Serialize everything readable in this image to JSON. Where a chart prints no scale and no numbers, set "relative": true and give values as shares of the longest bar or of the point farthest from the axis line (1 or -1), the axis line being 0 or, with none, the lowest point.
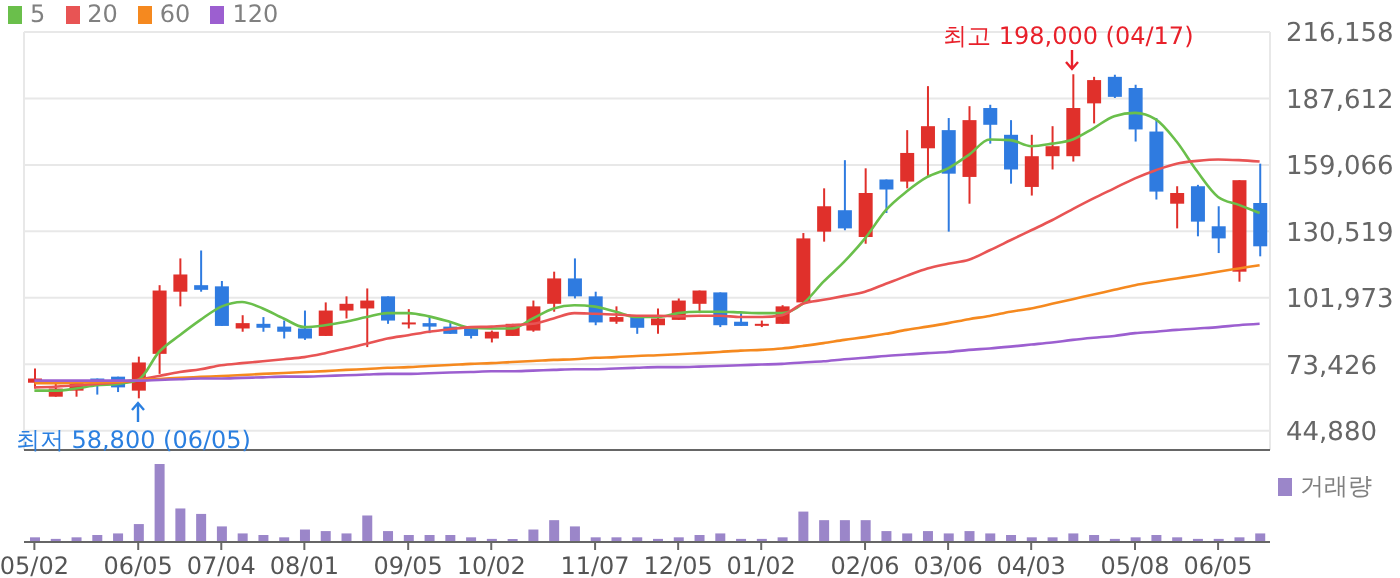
{
  "chart_data": [
    {
      "type": "candlestick",
      "categories": [
        null,
        null,
        null,
        null,
        null,
        null,
        null,
        null,
        null,
        null,
        null,
        null,
        null,
        null,
        null,
        null,
        null,
        null,
        null,
        null,
        null,
        null,
        null,
        null,
        null,
        null,
        null,
        null,
        null,
        null,
        null,
        null,
        null,
        null,
        null,
        null,
        null,
        null,
        null,
        null,
        null,
        null,
        null,
        null,
        null,
        null,
        null,
        null,
        null,
        null,
        null,
        null,
        null,
        null,
        null,
        null,
        null,
        null,
        null,
        null
      ],
      "ohlc": [
        [
          65500,
          71600,
          63000,
          67300
        ],
        [
          59500,
          65800,
          59500,
          63000
        ],
        [
          62100,
          66400,
          59500,
          65500
        ],
        [
          67300,
          67300,
          60400,
          64400
        ],
        [
          68100,
          68100,
          61500,
          63500
        ],
        [
          62100,
          76700,
          58800,
          74200
        ],
        [
          77900,
          107400,
          69300,
          105100
        ],
        [
          104600,
          118900,
          98300,
          112000
        ],
        [
          107400,
          122300,
          104600,
          105400
        ],
        [
          106900,
          109200,
          89900,
          89900
        ],
        [
          88800,
          94500,
          87400,
          91100
        ],
        [
          90800,
          93700,
          87400,
          89100
        ],
        [
          89600,
          92200,
          84500,
          87400
        ],
        [
          88800,
          96500,
          83900,
          84500
        ],
        [
          85600,
          100000,
          85600,
          96500
        ],
        [
          96500,
          102600,
          93100,
          99400
        ],
        [
          97400,
          106000,
          80800,
          100800
        ],
        [
          102600,
          102600,
          90800,
          92200
        ],
        [
          90800,
          97100,
          88800,
          91400
        ],
        [
          91100,
          93700,
          86800,
          89600
        ],
        [
          89600,
          91100,
          86500,
          86500
        ],
        [
          89100,
          89600,
          84500,
          85600
        ],
        [
          84500,
          87900,
          82800,
          87400
        ],
        [
          85600,
          90800,
          85600,
          90800
        ],
        [
          87900,
          100800,
          87400,
          98300
        ],
        [
          99400,
          113200,
          96000,
          110300
        ],
        [
          110300,
          118900,
          101700,
          102600
        ],
        [
          102600,
          104600,
          90200,
          91400
        ],
        [
          91700,
          98300,
          90800,
          93700
        ],
        [
          93700,
          94500,
          86500,
          89100
        ],
        [
          90200,
          97400,
          86500,
          93100
        ],
        [
          92500,
          101700,
          92500,
          100800
        ],
        [
          99400,
          105100,
          95400,
          105100
        ],
        [
          104300,
          104300,
          89400,
          90200
        ],
        [
          91700,
          95400,
          89900,
          89900
        ],
        [
          90200,
          92200,
          89400,
          90800
        ],
        [
          90800,
          98800,
          90800,
          98300
        ],
        [
          100000,
          129800,
          99400,
          127500
        ],
        [
          130400,
          149000,
          126100,
          141300
        ],
        [
          139600,
          161100,
          131000,
          131800
        ],
        [
          128100,
          157600,
          125200,
          147000
        ],
        [
          152800,
          152800,
          138400,
          148500
        ],
        [
          151900,
          174000,
          149000,
          164200
        ],
        [
          166200,
          192900,
          153900,
          175700
        ],
        [
          174000,
          179200,
          130400,
          155300
        ],
        [
          153900,
          184300,
          142400,
          178300
        ],
        [
          183500,
          184900,
          168200,
          176300
        ],
        [
          172000,
          178300,
          151000,
          157100
        ],
        [
          149600,
          172000,
          145900,
          162800
        ],
        [
          162800,
          175700,
          157100,
          167100
        ],
        [
          162800,
          198000,
          160500,
          183500
        ],
        [
          185500,
          196900,
          176900,
          195500
        ],
        [
          196900,
          197800,
          187800,
          188300
        ],
        [
          192100,
          193500,
          169100,
          174300
        ],
        [
          173400,
          179200,
          144200,
          147600
        ],
        [
          142400,
          149900,
          131800,
          147000
        ],
        [
          149900,
          150500,
          128400,
          134700
        ],
        [
          132700,
          141300,
          121200,
          127500
        ],
        [
          113200,
          152500,
          108900,
          152500
        ],
        [
          142700,
          159600,
          119800,
          124100
        ]
      ],
      "colors": [
        "#e0302b",
        "#e0302b",
        "#e0302b",
        "#2f7be0",
        "#2f7be0",
        "#e0302b",
        "#e0302b",
        "#e0302b",
        "#2f7be0",
        "#2f7be0",
        "#e0302b",
        "#2f7be0",
        "#2f7be0",
        "#2f7be0",
        "#e0302b",
        "#e0302b",
        "#e0302b",
        "#2f7be0",
        "#e0302b",
        "#2f7be0",
        "#2f7be0",
        "#2f7be0",
        "#e0302b",
        "#e0302b",
        "#e0302b",
        "#e0302b",
        "#2f7be0",
        "#2f7be0",
        "#e0302b",
        "#2f7be0",
        "#e0302b",
        "#e0302b",
        "#e0302b",
        "#2f7be0",
        "#2f7be0",
        "#e0302b",
        "#e0302b",
        "#e0302b",
        "#e0302b",
        "#2f7be0",
        "#e0302b",
        "#2f7be0",
        "#e0302b",
        "#e0302b",
        "#2f7be0",
        "#e0302b",
        "#2f7be0",
        "#2f7be0",
        "#e0302b",
        "#e0302b",
        "#e0302b",
        "#e0302b",
        "#2f7be0",
        "#2f7be0",
        "#2f7be0",
        "#e0302b",
        "#2f7be0",
        "#2f7be0",
        "#e0302b",
        "#2f7be0"
      ],
      "series": [
        {
          "type": "line",
          "name": "5",
          "color": "#6abf4b",
          "values": [
            62100,
            62100,
            63000,
            64400,
            65000,
            66700,
            78700,
            85900,
            92500,
            98200,
            100200,
            97400,
            93100,
            89400,
            90200,
            91700,
            93700,
            95400,
            95400,
            94000,
            91700,
            89100,
            88800,
            88800,
            93100,
            97400,
            98800,
            98200,
            96000,
            93700,
            93700,
            95400,
            96000,
            96000,
            95700,
            95400,
            95400,
            99400,
            108900,
            117500,
            127500,
            139600,
            147600,
            153900,
            157600,
            163400,
            170000,
            169700,
            167100,
            168200,
            170000,
            174800,
            180000,
            181400,
            178600,
            169100,
            156200,
            145300,
            141900,
            138400
          ]
        },
        {
          "type": "line",
          "name": "20",
          "color": "#e85454",
          "values": [
            63500,
            63800,
            64400,
            65000,
            65600,
            66700,
            68400,
            70100,
            71300,
            73000,
            73900,
            74700,
            75600,
            76500,
            78200,
            80200,
            82200,
            84500,
            85900,
            87400,
            88500,
            89400,
            89600,
            90200,
            90800,
            93100,
            95400,
            95100,
            94800,
            94300,
            94300,
            94000,
            94300,
            94300,
            93700,
            93700,
            94500,
            99400,
            101100,
            102800,
            104600,
            108000,
            111400,
            114600,
            116600,
            118300,
            122400,
            126700,
            131000,
            135300,
            140100,
            144700,
            149000,
            153300,
            156800,
            159600,
            160800,
            161400,
            161100,
            160500
          ]
        },
        {
          "type": "line",
          "name": "60",
          "color": "#f5891f",
          "values": [
            65300,
            65300,
            65600,
            65600,
            65800,
            66700,
            67100,
            67600,
            68000,
            68400,
            68800,
            69300,
            69700,
            70100,
            70500,
            71000,
            71400,
            71900,
            72200,
            72700,
            73100,
            73600,
            73900,
            74400,
            74800,
            75300,
            75600,
            76200,
            76500,
            77000,
            77300,
            77700,
            78200,
            78700,
            79300,
            79600,
            80200,
            81300,
            82500,
            83900,
            85100,
            86500,
            88200,
            89600,
            91100,
            92800,
            94200,
            96000,
            97400,
            99400,
            101400,
            103400,
            105400,
            107400,
            108900,
            110300,
            111700,
            113200,
            114600,
            116000
          ]
        },
        {
          "type": "line",
          "name": "120",
          "color": "#9c5fd0",
          "values": [
            66400,
            66400,
            66400,
            66400,
            66400,
            66400,
            66700,
            67000,
            67300,
            67300,
            67600,
            67800,
            68100,
            68100,
            68400,
            68700,
            69000,
            69300,
            69300,
            69600,
            69900,
            70100,
            70400,
            70400,
            70700,
            71000,
            71300,
            71300,
            71600,
            71900,
            72200,
            72200,
            72400,
            72700,
            73000,
            73300,
            73600,
            74200,
            74700,
            75600,
            76200,
            77000,
            77600,
            78200,
            78700,
            79600,
            80200,
            81000,
            81900,
            82800,
            83900,
            84800,
            85600,
            86800,
            87400,
            88200,
            88800,
            89400,
            90200,
            90800
          ]
        }
      ],
      "ylim": [
        36600,
        216158
      ],
      "yticks": [
        {
          "value": 44880,
          "label": "44,880"
        },
        {
          "value": 73426,
          "label": "73,426"
        },
        {
          "value": 101973,
          "label": "101,973"
        },
        {
          "value": 130519,
          "label": "130,519"
        },
        {
          "value": 159066,
          "label": "159,066"
        },
        {
          "value": 187612,
          "label": "187,612"
        },
        {
          "value": 216158,
          "label": "216,158"
        }
      ],
      "grid": true,
      "legend": "top left",
      "tick_labels": "y",
      "annotations": [
        "최고 198,000 (04/17)",
        "최저 58,800 (06/05)"
      ]
    },
    {
      "type": "bar",
      "relative": true,
      "categories": [
        "05/02",
        null,
        null,
        null,
        null,
        "06/05",
        null,
        null,
        null,
        "07/04",
        null,
        null,
        null,
        "08/01",
        null,
        null,
        null,
        null,
        "09/05",
        null,
        null,
        null,
        "10/02",
        null,
        null,
        null,
        null,
        "11/07",
        null,
        null,
        null,
        "12/05",
        null,
        null,
        null,
        "01/02",
        null,
        null,
        null,
        null,
        "02/06",
        null,
        null,
        null,
        "03/06",
        null,
        null,
        null,
        "04/03",
        null,
        null,
        null,
        null,
        "05/08",
        null,
        null,
        null,
        "06/05",
        null,
        null
      ],
      "series": [
        {
          "name": "거래량",
          "color": "#9b86c9",
          "values": [
            0.06,
            0.04,
            0.06,
            0.09,
            0.11,
            0.23,
            1,
            0.43,
            0.36,
            0.2,
            0.11,
            0.09,
            0.06,
            0.16,
            0.14,
            0.11,
            0.34,
            0.14,
            0.09,
            0.09,
            0.09,
            0.06,
            0.04,
            0.04,
            0.16,
            0.28,
            0.2,
            0.06,
            0.06,
            0.06,
            0.04,
            0.06,
            0.09,
            0.11,
            0.04,
            0.04,
            0.06,
            0.39,
            0.28,
            0.28,
            0.28,
            0.14,
            0.11,
            0.14,
            0.11,
            0.14,
            0.11,
            0.09,
            0.06,
            0.06,
            0.11,
            0.09,
            0.04,
            0.06,
            0.09,
            0.06,
            0.04,
            0.04,
            0.06,
            0.11
          ]
        }
      ],
      "legend": "top right",
      "tick_labels": "x"
    }
  ]
}
